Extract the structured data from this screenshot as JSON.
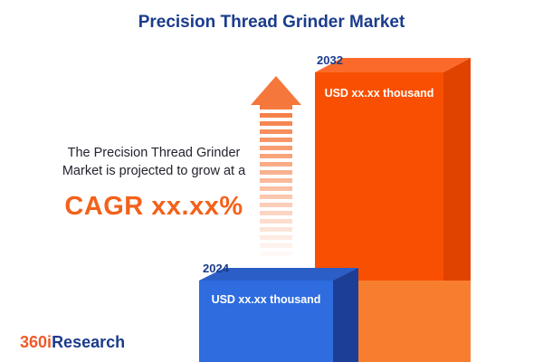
{
  "title": "Precision Thread Grinder Market",
  "description": {
    "line1": "The Precision Thread Grinder",
    "line2": "Market is projected to grow at a",
    "cagr": "CAGR xx.xx%"
  },
  "chart_data": {
    "type": "bar",
    "title": "Precision Thread Grinder Market",
    "categories": [
      "2024",
      "2032"
    ],
    "values": [
      "xx.xx",
      "xx.xx"
    ],
    "unit": "USD thousand",
    "bars": [
      {
        "year": "2024",
        "label": "USD xx.xx thousand",
        "color": "#2E6CDF"
      },
      {
        "year": "2032",
        "label": "USD xx.xx thousand",
        "color": "#F94F02"
      }
    ],
    "legend": "none",
    "grid": false,
    "annotation": "orange striped growth arrow pointing up between text and bars"
  },
  "logo": {
    "part1": "360",
    "part2": "i",
    "part3": "Research"
  },
  "colors": {
    "title_navy": "#1B3C8C",
    "accent_orange": "#F4611A",
    "bar_2032_front": "#F94F02",
    "bar_2032_side": "#E04300",
    "bar_2024_front": "#2E6CDF",
    "bar_2024_side": "#1C3E97",
    "arrow": "#F5773B",
    "background": "#FFFFFF"
  }
}
